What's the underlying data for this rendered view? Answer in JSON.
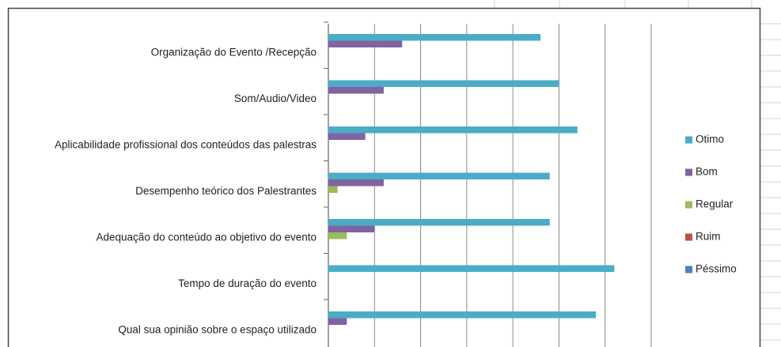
{
  "chart_data": {
    "type": "hbar",
    "categories": [
      "Organização do Evento /Recepção",
      "Som/Audio/Video",
      "Aplicabilidade profissional dos conteúdos das palestras",
      "Desempenho teórico dos Palestrantes",
      "Adequação do conteúdo ao objetivo do evento",
      "Tempo de duração do evento",
      "Qual sua opinião sobre o espaço utilizado"
    ],
    "series": [
      {
        "name": "Otimo",
        "color": "#4bacc6",
        "values": [
          4.6,
          5.0,
          5.4,
          4.8,
          4.8,
          6.2,
          5.8
        ]
      },
      {
        "name": "Bom",
        "color": "#8064a2",
        "values": [
          1.6,
          1.2,
          0.8,
          1.2,
          1.0,
          0,
          0.4
        ]
      },
      {
        "name": "Regular",
        "color": "#9bbb59",
        "values": [
          0,
          0,
          0,
          0.2,
          0.4,
          0,
          0
        ]
      },
      {
        "name": "Ruim",
        "color": "#c0504d",
        "values": [
          0,
          0,
          0,
          0,
          0,
          0,
          0
        ]
      },
      {
        "name": "Péssimo",
        "color": "#4f81bd",
        "values": [
          0,
          0,
          0,
          0,
          0,
          0,
          0
        ]
      }
    ],
    "xlim": [
      0,
      7
    ],
    "xticks": [
      0,
      1,
      2,
      3,
      4,
      5,
      6,
      7
    ],
    "grid": true,
    "legend": "right"
  }
}
